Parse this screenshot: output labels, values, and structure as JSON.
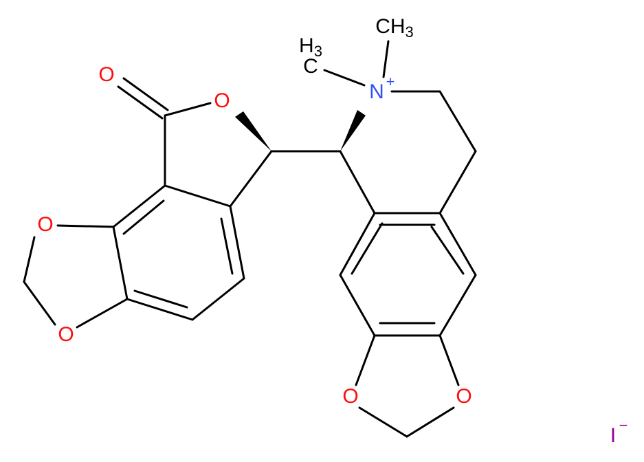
{
  "molecule": {
    "atoms": [
      {
        "symbol": "O"
      },
      {
        "symbol": "O"
      },
      {
        "symbol": "O"
      },
      {
        "symbol": "O"
      },
      {
        "symbol": "O"
      },
      {
        "symbol": "O"
      },
      {
        "symbol": "N",
        "charge": "+"
      }
    ],
    "methyls": [
      {
        "main": "CH",
        "sub": "3"
      },
      {
        "main": "C",
        "sub": "3",
        "prefix": "H"
      }
    ],
    "counterion": {
      "symbol": "I",
      "charge": "−"
    }
  }
}
